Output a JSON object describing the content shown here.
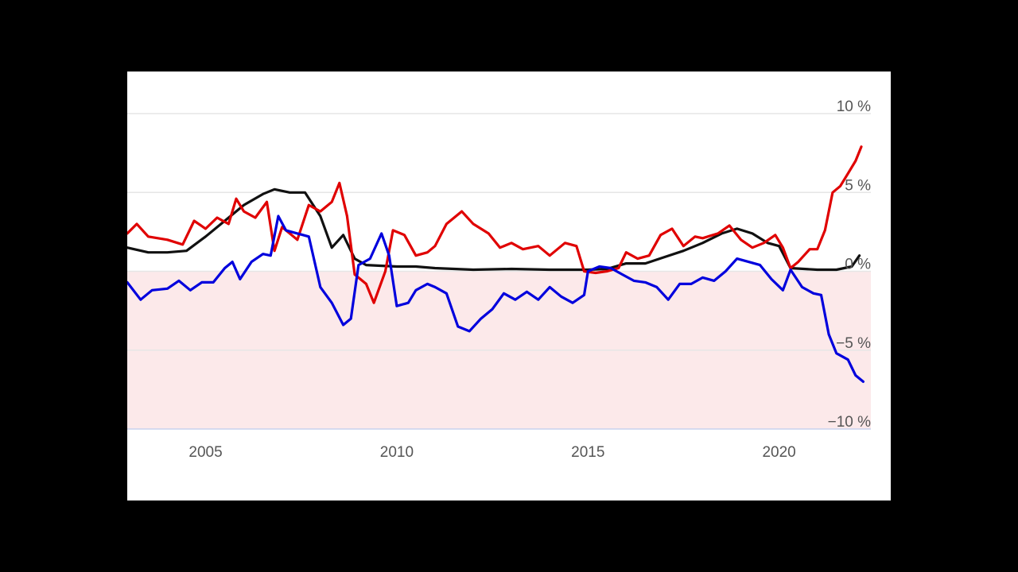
{
  "chart_data": {
    "type": "line",
    "title": "",
    "xlabel": "",
    "ylabel": "",
    "xlim": [
      2002.95,
      2022.4
    ],
    "ylim": [
      -10,
      10
    ],
    "x_ticks": [
      2005,
      2010,
      2015,
      2020
    ],
    "x_tick_labels": [
      "2005",
      "2010",
      "2015",
      "2020"
    ],
    "y_ticks": [
      10,
      5,
      0,
      -5,
      -10
    ],
    "y_tick_labels": [
      "10 %",
      "5 %",
      "0 %",
      "−5 %",
      "−10 %"
    ],
    "grid": true,
    "legend": "none",
    "negative_region_color": "#fce9ea",
    "series": [
      {
        "color": "#111111",
        "points": [
          [
            2002.95,
            1.5
          ],
          [
            2003.5,
            1.2
          ],
          [
            2004.0,
            1.2
          ],
          [
            2004.5,
            1.3
          ],
          [
            2005.0,
            2.2
          ],
          [
            2005.5,
            3.2
          ],
          [
            2006.0,
            4.2
          ],
          [
            2006.5,
            4.9
          ],
          [
            2006.8,
            5.2
          ],
          [
            2007.2,
            5.0
          ],
          [
            2007.6,
            5.0
          ],
          [
            2008.0,
            3.5
          ],
          [
            2008.3,
            1.5
          ],
          [
            2008.6,
            2.3
          ],
          [
            2008.9,
            0.8
          ],
          [
            2009.2,
            0.4
          ],
          [
            2010.0,
            0.3
          ],
          [
            2010.5,
            0.3
          ],
          [
            2011.0,
            0.2
          ],
          [
            2012.0,
            0.1
          ],
          [
            2013.0,
            0.15
          ],
          [
            2014.0,
            0.1
          ],
          [
            2015.0,
            0.1
          ],
          [
            2015.5,
            0.15
          ],
          [
            2016.0,
            0.5
          ],
          [
            2016.5,
            0.5
          ],
          [
            2017.0,
            0.9
          ],
          [
            2017.5,
            1.3
          ],
          [
            2018.0,
            1.8
          ],
          [
            2018.5,
            2.4
          ],
          [
            2018.9,
            2.7
          ],
          [
            2019.3,
            2.4
          ],
          [
            2019.7,
            1.8
          ],
          [
            2020.0,
            1.6
          ],
          [
            2020.3,
            0.2
          ],
          [
            2021.0,
            0.1
          ],
          [
            2021.5,
            0.1
          ],
          [
            2021.9,
            0.3
          ],
          [
            2022.1,
            1.0
          ]
        ]
      },
      {
        "color": "#e00000",
        "points": [
          [
            2002.95,
            2.4
          ],
          [
            2003.2,
            3.0
          ],
          [
            2003.5,
            2.2
          ],
          [
            2004.0,
            2.0
          ],
          [
            2004.4,
            1.7
          ],
          [
            2004.7,
            3.2
          ],
          [
            2005.0,
            2.7
          ],
          [
            2005.3,
            3.4
          ],
          [
            2005.6,
            3.0
          ],
          [
            2005.8,
            4.6
          ],
          [
            2006.0,
            3.8
          ],
          [
            2006.3,
            3.4
          ],
          [
            2006.6,
            4.4
          ],
          [
            2006.8,
            1.3
          ],
          [
            2007.0,
            2.8
          ],
          [
            2007.4,
            2.0
          ],
          [
            2007.7,
            4.2
          ],
          [
            2008.0,
            3.8
          ],
          [
            2008.3,
            4.4
          ],
          [
            2008.5,
            5.6
          ],
          [
            2008.7,
            3.5
          ],
          [
            2008.9,
            -0.2
          ],
          [
            2009.2,
            -0.8
          ],
          [
            2009.4,
            -2.0
          ],
          [
            2009.7,
            0.0
          ],
          [
            2009.9,
            2.6
          ],
          [
            2010.2,
            2.3
          ],
          [
            2010.5,
            1.0
          ],
          [
            2010.8,
            1.2
          ],
          [
            2011.0,
            1.6
          ],
          [
            2011.3,
            3.0
          ],
          [
            2011.7,
            3.8
          ],
          [
            2012.0,
            3.0
          ],
          [
            2012.4,
            2.4
          ],
          [
            2012.7,
            1.5
          ],
          [
            2013.0,
            1.8
          ],
          [
            2013.3,
            1.4
          ],
          [
            2013.7,
            1.6
          ],
          [
            2014.0,
            1.0
          ],
          [
            2014.4,
            1.8
          ],
          [
            2014.7,
            1.6
          ],
          [
            2014.9,
            0.0
          ],
          [
            2015.2,
            -0.1
          ],
          [
            2015.5,
            0.0
          ],
          [
            2015.8,
            0.2
          ],
          [
            2016.0,
            1.2
          ],
          [
            2016.3,
            0.8
          ],
          [
            2016.6,
            1.0
          ],
          [
            2016.9,
            2.3
          ],
          [
            2017.2,
            2.7
          ],
          [
            2017.5,
            1.6
          ],
          [
            2017.8,
            2.2
          ],
          [
            2018.0,
            2.1
          ],
          [
            2018.4,
            2.4
          ],
          [
            2018.7,
            2.9
          ],
          [
            2019.0,
            2.0
          ],
          [
            2019.3,
            1.5
          ],
          [
            2019.6,
            1.8
          ],
          [
            2019.9,
            2.3
          ],
          [
            2020.1,
            1.5
          ],
          [
            2020.3,
            0.2
          ],
          [
            2020.5,
            0.6
          ],
          [
            2020.8,
            1.4
          ],
          [
            2021.0,
            1.4
          ],
          [
            2021.2,
            2.6
          ],
          [
            2021.4,
            5.0
          ],
          [
            2021.6,
            5.4
          ],
          [
            2021.8,
            6.2
          ],
          [
            2022.0,
            7.0
          ],
          [
            2022.15,
            7.9
          ]
        ]
      },
      {
        "color": "#0000dd",
        "points": [
          [
            2002.95,
            -0.7
          ],
          [
            2003.3,
            -1.8
          ],
          [
            2003.6,
            -1.2
          ],
          [
            2004.0,
            -1.1
          ],
          [
            2004.3,
            -0.6
          ],
          [
            2004.6,
            -1.2
          ],
          [
            2004.9,
            -0.7
          ],
          [
            2005.2,
            -0.7
          ],
          [
            2005.5,
            0.2
          ],
          [
            2005.7,
            0.6
          ],
          [
            2005.9,
            -0.5
          ],
          [
            2006.2,
            0.6
          ],
          [
            2006.5,
            1.1
          ],
          [
            2006.7,
            1.0
          ],
          [
            2006.9,
            3.5
          ],
          [
            2007.1,
            2.6
          ],
          [
            2007.4,
            2.4
          ],
          [
            2007.7,
            2.2
          ],
          [
            2008.0,
            -1.0
          ],
          [
            2008.3,
            -2.0
          ],
          [
            2008.6,
            -3.4
          ],
          [
            2008.8,
            -3.0
          ],
          [
            2009.0,
            0.4
          ],
          [
            2009.3,
            0.8
          ],
          [
            2009.6,
            2.4
          ],
          [
            2009.8,
            1.0
          ],
          [
            2010.0,
            -2.2
          ],
          [
            2010.3,
            -2.0
          ],
          [
            2010.5,
            -1.2
          ],
          [
            2010.8,
            -0.8
          ],
          [
            2011.0,
            -1.0
          ],
          [
            2011.3,
            -1.4
          ],
          [
            2011.6,
            -3.5
          ],
          [
            2011.9,
            -3.8
          ],
          [
            2012.2,
            -3.0
          ],
          [
            2012.5,
            -2.4
          ],
          [
            2012.8,
            -1.4
          ],
          [
            2013.1,
            -1.8
          ],
          [
            2013.4,
            -1.3
          ],
          [
            2013.7,
            -1.8
          ],
          [
            2014.0,
            -1.0
          ],
          [
            2014.3,
            -1.6
          ],
          [
            2014.6,
            -2.0
          ],
          [
            2014.9,
            -1.5
          ],
          [
            2015.0,
            0.0
          ],
          [
            2015.3,
            0.3
          ],
          [
            2015.6,
            0.2
          ],
          [
            2015.9,
            -0.2
          ],
          [
            2016.2,
            -0.6
          ],
          [
            2016.5,
            -0.7
          ],
          [
            2016.8,
            -1.0
          ],
          [
            2017.1,
            -1.8
          ],
          [
            2017.4,
            -0.8
          ],
          [
            2017.7,
            -0.8
          ],
          [
            2018.0,
            -0.4
          ],
          [
            2018.3,
            -0.6
          ],
          [
            2018.6,
            0.0
          ],
          [
            2018.9,
            0.8
          ],
          [
            2019.2,
            0.6
          ],
          [
            2019.5,
            0.4
          ],
          [
            2019.8,
            -0.5
          ],
          [
            2020.1,
            -1.2
          ],
          [
            2020.3,
            0.1
          ],
          [
            2020.6,
            -1.0
          ],
          [
            2020.9,
            -1.4
          ],
          [
            2021.1,
            -1.5
          ],
          [
            2021.3,
            -4.0
          ],
          [
            2021.5,
            -5.2
          ],
          [
            2021.8,
            -5.6
          ],
          [
            2022.0,
            -6.6
          ],
          [
            2022.2,
            -7.0
          ]
        ]
      }
    ]
  }
}
